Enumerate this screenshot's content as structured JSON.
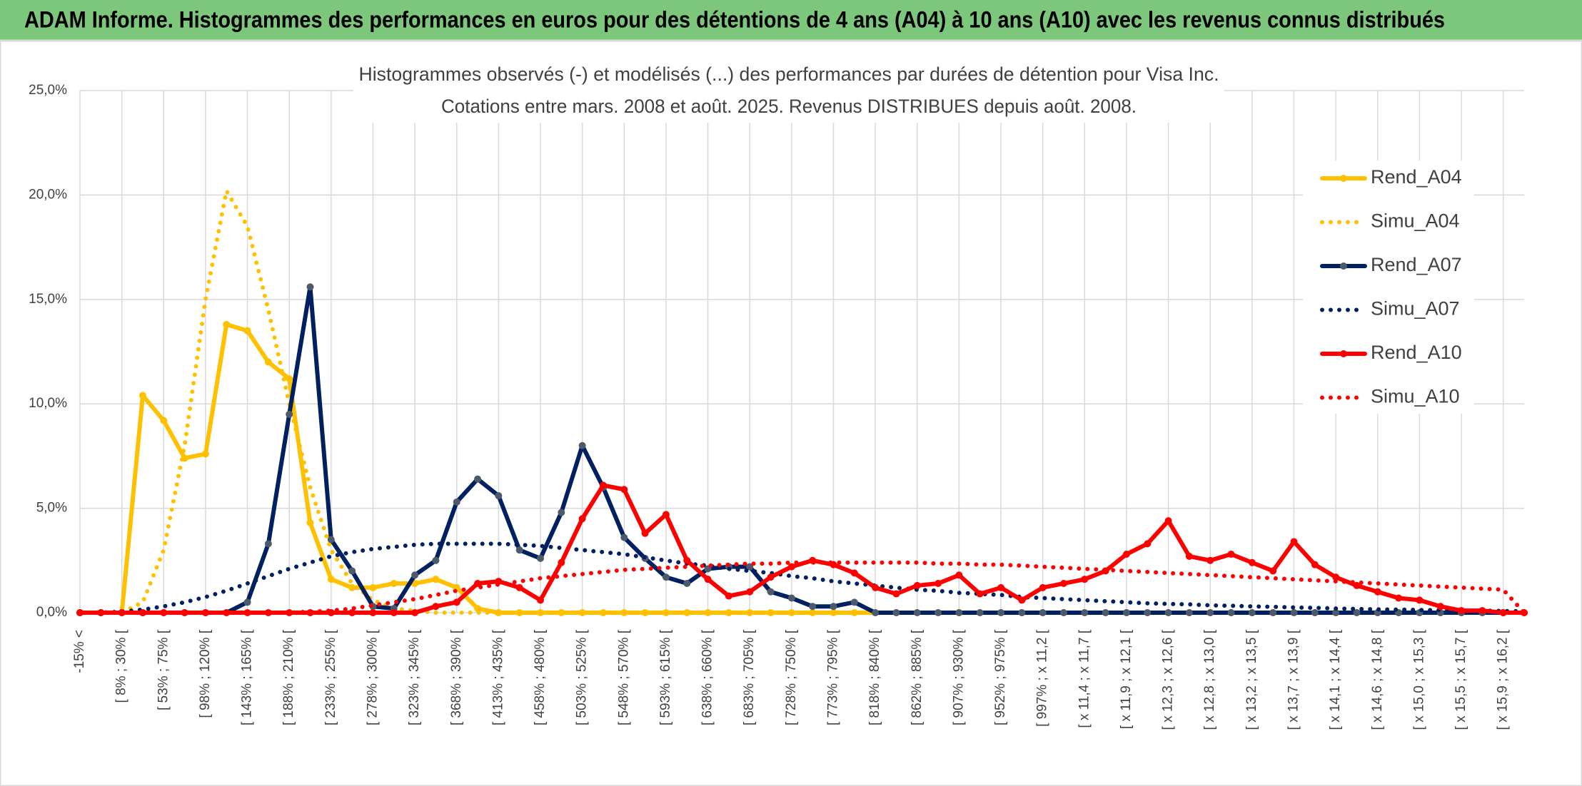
{
  "header": {
    "title": "ADAM Informe. Histogrammes des performances en euros pour des détentions de 4 ans (A04) à 10 ans (A10) avec les revenus connus distribués"
  },
  "chart_data": {
    "type": "line",
    "title": "Histogrammes observés (-) et modélisés (...) des performances par durées de détention pour Visa Inc.",
    "subtitle": "Cotations entre mars. 2008 et août. 2025. Revenus DISTRIBUES depuis août. 2008.",
    "categories": [
      "-15% <",
      null,
      "[ 8% ; 30% [",
      null,
      "[ 53% ; 75% [",
      null,
      "[ 98% ; 120% [",
      null,
      "[ 143% ; 165% [",
      null,
      "[ 188% ; 210% [",
      null,
      "[ 233% ; 255% [",
      null,
      "[ 278% ; 300% [",
      null,
      "[ 323% ; 345% [",
      null,
      "[ 368% ; 390% [",
      null,
      "[ 413% ; 435% [",
      null,
      "[ 458% ; 480% [",
      null,
      "[ 503% ; 525% [",
      null,
      "[ 548% ; 570% [",
      null,
      "[ 593% ; 615% [",
      null,
      "[ 638% ; 660% [",
      null,
      "[ 683% ; 705% [",
      null,
      "[ 728% ; 750% [",
      null,
      "[ 773% ; 795% [",
      null,
      "[ 818% ; 840% [",
      null,
      "[ 862% ; 885% [",
      null,
      "[ 907% ; 930% [",
      null,
      "[ 952% ; 975% [",
      null,
      "[ 997% ; x 11,2 [",
      null,
      "[ x 11,4 ; x 11,7 [",
      null,
      "[ x 11,9 ; x 12,1 [",
      null,
      "[ x 12,3 ; x 12,6 [",
      null,
      "[ x 12,8 ; x 13,0 [",
      null,
      "[ x 13,2 ; x 13,5 [",
      null,
      "[ x 13,7 ; x 13,9 [",
      null,
      "[ x 14,1 ; x 14,4 [",
      null,
      "[ x 14,6 ; x 14,8 [",
      null,
      "[ x 15,0 ; x 15,3 [",
      null,
      "[ x 15,5 ; x 15,7 [",
      null,
      "[ x 15,9 ; x 16,2 [",
      null
    ],
    "ylim": [
      0,
      25
    ],
    "yticks": [
      {
        "value": 0,
        "label": "0,0%"
      },
      {
        "value": 5,
        "label": "5,0%"
      },
      {
        "value": 10,
        "label": "10,0%"
      },
      {
        "value": 15,
        "label": "15,0%"
      },
      {
        "value": 20,
        "label": "20,0%"
      },
      {
        "value": 25,
        "label": "25,0%"
      }
    ],
    "grid": true,
    "xgrid": true,
    "legend": "right",
    "series": [
      {
        "name": "Rend_A04",
        "color": "#ffc000",
        "style": "solid",
        "markers": true,
        "values": [
          0,
          0,
          0,
          10.4,
          9.2,
          7.4,
          7.6,
          13.8,
          13.5,
          12.0,
          11.2,
          4.3,
          1.6,
          1.2,
          1.2,
          1.4,
          1.4,
          1.6,
          1.2,
          0.2,
          0,
          0,
          0,
          0,
          0,
          0,
          0,
          0,
          0,
          0,
          0,
          0,
          0,
          0,
          0,
          0,
          0,
          0,
          0,
          0,
          0,
          0,
          0,
          0,
          0,
          0,
          0,
          0,
          0,
          0,
          0,
          0,
          0,
          0,
          0,
          0,
          0,
          0,
          0,
          0,
          0,
          0,
          0,
          0,
          0,
          0,
          0,
          0,
          0,
          0
        ]
      },
      {
        "name": "Simu_A04",
        "color": "#ffc000",
        "style": "dotted",
        "markers": false,
        "values": [
          0,
          0,
          0,
          0.5,
          3,
          8,
          15,
          20.2,
          18.5,
          14.5,
          10,
          6,
          3,
          1.4,
          0.6,
          0.2,
          0.1,
          0,
          0,
          0,
          0,
          0,
          0,
          0,
          0,
          0,
          0,
          0,
          0,
          0,
          0,
          0,
          0,
          0,
          0,
          0,
          0,
          0,
          0,
          0,
          0,
          0,
          0,
          0,
          0,
          0,
          0,
          0,
          0,
          0,
          0,
          0,
          0,
          0,
          0,
          0,
          0,
          0,
          0,
          0,
          0,
          0,
          0,
          0,
          0,
          0,
          0,
          0,
          0,
          0
        ]
      },
      {
        "name": "Rend_A07",
        "color": "#002060",
        "style": "solid",
        "markers": true,
        "values": [
          0,
          0,
          0,
          0,
          0,
          0,
          0,
          0,
          0.5,
          3.3,
          9.5,
          15.6,
          3.5,
          2.0,
          0.3,
          0.2,
          1.8,
          2.5,
          5.3,
          6.4,
          5.6,
          3.0,
          2.6,
          4.8,
          8.0,
          6.0,
          3.6,
          2.6,
          1.7,
          1.4,
          2.1,
          2.2,
          2.2,
          1.0,
          0.7,
          0.3,
          0.3,
          0.5,
          0,
          0,
          0,
          0,
          0,
          0,
          0,
          0,
          0,
          0,
          0,
          0,
          0,
          0,
          0,
          0,
          0,
          0,
          0,
          0,
          0,
          0,
          0,
          0,
          0,
          0,
          0,
          0,
          0,
          0,
          0,
          0
        ]
      },
      {
        "name": "Simu_A07",
        "color": "#002060",
        "style": "dotted",
        "markers": false,
        "values": [
          0,
          0,
          0.05,
          0.15,
          0.3,
          0.5,
          0.75,
          1.05,
          1.4,
          1.75,
          2.1,
          2.4,
          2.7,
          2.9,
          3.05,
          3.15,
          3.25,
          3.3,
          3.3,
          3.3,
          3.3,
          3.25,
          3.2,
          3.1,
          3.0,
          2.9,
          2.8,
          2.65,
          2.5,
          2.35,
          2.25,
          2.1,
          2.0,
          1.9,
          1.75,
          1.65,
          1.5,
          1.4,
          1.3,
          1.2,
          1.1,
          1.05,
          0.95,
          0.9,
          0.85,
          0.75,
          0.7,
          0.65,
          0.6,
          0.55,
          0.5,
          0.45,
          0.42,
          0.4,
          0.35,
          0.33,
          0.3,
          0.28,
          0.25,
          0.23,
          0.2,
          0.18,
          0.16,
          0.15,
          0.13,
          0.12,
          0.1,
          0.1,
          0.08,
          0.07
        ]
      },
      {
        "name": "Rend_A10",
        "color": "#ff0000",
        "style": "solid",
        "markers": true,
        "values": [
          0,
          0,
          0,
          0,
          0,
          0,
          0,
          0,
          0,
          0,
          0,
          0,
          0,
          0,
          0,
          0,
          0,
          0.3,
          0.5,
          1.4,
          1.5,
          1.2,
          0.6,
          2.4,
          4.5,
          6.1,
          5.9,
          3.8,
          4.7,
          2.5,
          1.6,
          0.8,
          1.0,
          1.7,
          2.2,
          2.5,
          2.3,
          1.9,
          1.2,
          0.9,
          1.3,
          1.4,
          1.8,
          0.9,
          1.2,
          0.6,
          1.2,
          1.4,
          1.6,
          2.0,
          2.8,
          3.3,
          4.4,
          2.7,
          2.5,
          2.8,
          2.4,
          2.0,
          3.4,
          2.3,
          1.7,
          1.3,
          1.0,
          0.7,
          0.6,
          0.3,
          0.1,
          0.1,
          0,
          0
        ]
      },
      {
        "name": "Simu_A10",
        "color": "#ff0000",
        "style": "dotted",
        "markers": false,
        "values": [
          0,
          0,
          0,
          0,
          0,
          0,
          0,
          0,
          0,
          0,
          0,
          0.05,
          0.1,
          0.2,
          0.35,
          0.5,
          0.65,
          0.85,
          1.05,
          1.2,
          1.35,
          1.5,
          1.65,
          1.75,
          1.85,
          1.95,
          2.05,
          2.1,
          2.15,
          2.2,
          2.25,
          2.3,
          2.35,
          2.35,
          2.4,
          2.4,
          2.4,
          2.4,
          2.4,
          2.4,
          2.4,
          2.35,
          2.35,
          2.3,
          2.3,
          2.25,
          2.2,
          2.15,
          2.1,
          2.05,
          2.0,
          1.95,
          1.9,
          1.85,
          1.8,
          1.75,
          1.7,
          1.65,
          1.6,
          1.55,
          1.5,
          1.45,
          1.4,
          1.35,
          1.3,
          1.25,
          1.2,
          1.15,
          1.1,
          0
        ]
      }
    ]
  }
}
